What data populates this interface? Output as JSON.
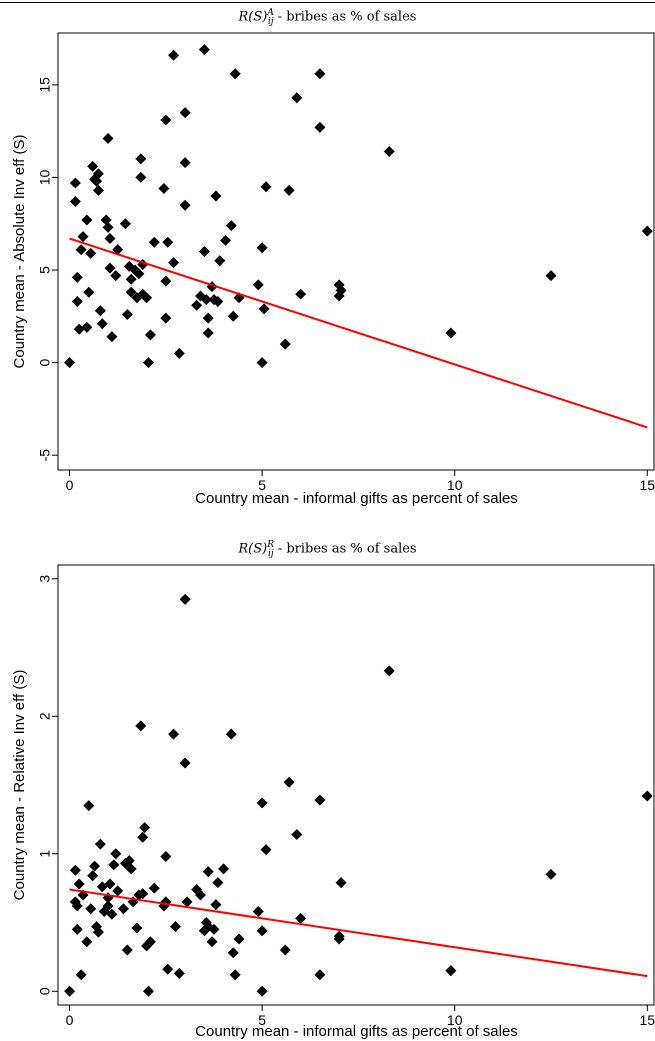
{
  "chart_data": [
    {
      "type": "scatter",
      "title_main": "R(S)",
      "title_sup": "A",
      "title_sub": "ij",
      "title_rest": " - bribes as % of sales",
      "xlabel": "Country mean - informal gifts as percent of sales",
      "ylabel": "Country mean - Absolute Inv eff (S)",
      "xlim": [
        -0.3,
        15.2
      ],
      "ylim": [
        -5.8,
        17.8
      ],
      "xticks": [
        0,
        5,
        10,
        15
      ],
      "yticks": [
        -5,
        0,
        5,
        10,
        15
      ],
      "marker_color": "#000000",
      "fit_color": "#ff0000",
      "fit_line": [
        [
          0,
          6.7
        ],
        [
          15,
          -3.5
        ]
      ],
      "points": [
        [
          0,
          0
        ],
        [
          0.15,
          9.7
        ],
        [
          0.15,
          8.7
        ],
        [
          0.2,
          4.6
        ],
        [
          0.2,
          3.3
        ],
        [
          0.25,
          1.8
        ],
        [
          0.3,
          6.1
        ],
        [
          0.35,
          6.8
        ],
        [
          0.45,
          7.7
        ],
        [
          0.45,
          1.9
        ],
        [
          0.5,
          3.8
        ],
        [
          0.55,
          5.9
        ],
        [
          0.6,
          10.6
        ],
        [
          0.65,
          9.9
        ],
        [
          0.7,
          9.8
        ],
        [
          0.75,
          10.2
        ],
        [
          0.75,
          9.3
        ],
        [
          0.8,
          2.8
        ],
        [
          0.85,
          2.1
        ],
        [
          0.95,
          7.7
        ],
        [
          1.0,
          12.1
        ],
        [
          1.0,
          7.3
        ],
        [
          1.05,
          6.7
        ],
        [
          1.05,
          5.1
        ],
        [
          1.1,
          1.4
        ],
        [
          1.2,
          4.7
        ],
        [
          1.25,
          6.1
        ],
        [
          1.45,
          7.5
        ],
        [
          1.5,
          2.6
        ],
        [
          1.55,
          5.2
        ],
        [
          1.6,
          4.5
        ],
        [
          1.6,
          3.8
        ],
        [
          1.7,
          5.0
        ],
        [
          1.75,
          3.5
        ],
        [
          1.8,
          4.8
        ],
        [
          1.85,
          11.0
        ],
        [
          1.85,
          10.0
        ],
        [
          1.9,
          5.3
        ],
        [
          1.9,
          3.7
        ],
        [
          2.0,
          3.5
        ],
        [
          2.05,
          0
        ],
        [
          2.1,
          1.5
        ],
        [
          2.2,
          6.5
        ],
        [
          2.45,
          9.4
        ],
        [
          2.5,
          13.1
        ],
        [
          2.5,
          4.4
        ],
        [
          2.5,
          2.4
        ],
        [
          2.55,
          6.5
        ],
        [
          2.7,
          16.6
        ],
        [
          2.7,
          5.4
        ],
        [
          2.85,
          0.5
        ],
        [
          3.0,
          13.5
        ],
        [
          3.0,
          10.8
        ],
        [
          3.0,
          8.5
        ],
        [
          3.3,
          3.1
        ],
        [
          3.4,
          3.6
        ],
        [
          3.5,
          16.9
        ],
        [
          3.5,
          6.0
        ],
        [
          3.55,
          3.4
        ],
        [
          3.6,
          2.4
        ],
        [
          3.6,
          1.6
        ],
        [
          3.7,
          4.1
        ],
        [
          3.75,
          3.4
        ],
        [
          3.8,
          9.0
        ],
        [
          3.85,
          3.3
        ],
        [
          3.9,
          5.5
        ],
        [
          4.05,
          6.6
        ],
        [
          4.2,
          7.4
        ],
        [
          4.25,
          2.5
        ],
        [
          4.3,
          15.6
        ],
        [
          4.4,
          3.5
        ],
        [
          4.9,
          4.2
        ],
        [
          5.0,
          6.2
        ],
        [
          5.0,
          0
        ],
        [
          5.05,
          2.9
        ],
        [
          5.1,
          9.5
        ],
        [
          5.6,
          1.0
        ],
        [
          5.7,
          9.3
        ],
        [
          5.9,
          14.3
        ],
        [
          6.0,
          3.7
        ],
        [
          6.5,
          15.6
        ],
        [
          6.5,
          12.7
        ],
        [
          7.0,
          3.6
        ],
        [
          7.0,
          4.2
        ],
        [
          7.05,
          3.9
        ],
        [
          8.3,
          11.4
        ],
        [
          9.9,
          1.6
        ],
        [
          12.5,
          4.7
        ],
        [
          15.0,
          7.1
        ]
      ]
    },
    {
      "type": "scatter",
      "title_main": "R(S)",
      "title_sup": "R",
      "title_sub": "ij",
      "title_rest": " - bribes as % of sales",
      "xlabel": "Country mean - informal gifts as percent of sales",
      "ylabel": "Country mean - Relative Inv eff (S)",
      "xlim": [
        -0.3,
        15.2
      ],
      "ylim": [
        -0.1,
        3.1
      ],
      "xticks": [
        0,
        5,
        10,
        15
      ],
      "yticks": [
        0,
        1,
        2,
        3
      ],
      "marker_color": "#000000",
      "fit_color": "#ff0000",
      "fit_line": [
        [
          0,
          0.74
        ],
        [
          15,
          0.11
        ]
      ],
      "points": [
        [
          0,
          0
        ],
        [
          0.15,
          0.88
        ],
        [
          0.15,
          0.65
        ],
        [
          0.2,
          0.62
        ],
        [
          0.2,
          0.45
        ],
        [
          0.25,
          0.78
        ],
        [
          0.3,
          0.12
        ],
        [
          0.35,
          0.7
        ],
        [
          0.45,
          0.36
        ],
        [
          0.5,
          1.35
        ],
        [
          0.55,
          0.6
        ],
        [
          0.6,
          0.84
        ],
        [
          0.65,
          0.91
        ],
        [
          0.7,
          0.47
        ],
        [
          0.75,
          0.43
        ],
        [
          0.8,
          1.07
        ],
        [
          0.85,
          0.76
        ],
        [
          0.9,
          0.58
        ],
        [
          1.0,
          0.68
        ],
        [
          1.0,
          0.62
        ],
        [
          1.05,
          0.78
        ],
        [
          1.1,
          0.56
        ],
        [
          1.15,
          0.92
        ],
        [
          1.2,
          1.0
        ],
        [
          1.25,
          0.73
        ],
        [
          1.4,
          0.6
        ],
        [
          1.45,
          0.93
        ],
        [
          1.5,
          0.3
        ],
        [
          1.55,
          0.95
        ],
        [
          1.6,
          0.89
        ],
        [
          1.65,
          0.65
        ],
        [
          1.75,
          0.46
        ],
        [
          1.8,
          0.7
        ],
        [
          1.85,
          1.93
        ],
        [
          1.9,
          1.12
        ],
        [
          1.9,
          0.71
        ],
        [
          1.95,
          1.19
        ],
        [
          2.0,
          0.33
        ],
        [
          2.05,
          0
        ],
        [
          2.1,
          0.36
        ],
        [
          2.2,
          0.75
        ],
        [
          2.45,
          0.62
        ],
        [
          2.5,
          0.98
        ],
        [
          2.5,
          0.65
        ],
        [
          2.55,
          0.16
        ],
        [
          2.7,
          1.87
        ],
        [
          2.75,
          0.47
        ],
        [
          2.85,
          0.13
        ],
        [
          3.0,
          2.85
        ],
        [
          3.0,
          1.66
        ],
        [
          3.05,
          0.65
        ],
        [
          3.3,
          0.74
        ],
        [
          3.4,
          0.7
        ],
        [
          3.5,
          0.44
        ],
        [
          3.55,
          0.5
        ],
        [
          3.6,
          0.87
        ],
        [
          3.6,
          0.47
        ],
        [
          3.7,
          0.36
        ],
        [
          3.75,
          0.45
        ],
        [
          3.8,
          0.63
        ],
        [
          3.85,
          0.79
        ],
        [
          4.0,
          0.89
        ],
        [
          4.2,
          1.87
        ],
        [
          4.25,
          0.28
        ],
        [
          4.3,
          0.12
        ],
        [
          4.4,
          0.38
        ],
        [
          4.9,
          0.58
        ],
        [
          5.0,
          1.37
        ],
        [
          5.0,
          0.44
        ],
        [
          5.0,
          0
        ],
        [
          5.1,
          1.03
        ],
        [
          5.6,
          0.3
        ],
        [
          5.7,
          1.52
        ],
        [
          5.9,
          1.14
        ],
        [
          6.0,
          0.53
        ],
        [
          6.5,
          1.39
        ],
        [
          6.5,
          0.12
        ],
        [
          7.0,
          0.38
        ],
        [
          7.0,
          0.4
        ],
        [
          7.05,
          0.79
        ],
        [
          8.3,
          2.33
        ],
        [
          9.9,
          0.15
        ],
        [
          12.5,
          0.85
        ],
        [
          15.0,
          1.42
        ]
      ]
    }
  ]
}
